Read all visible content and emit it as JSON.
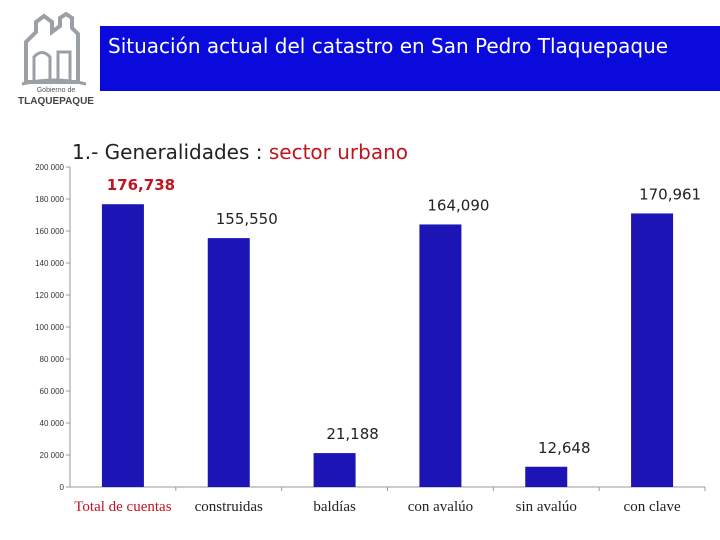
{
  "header": {
    "logo_line1": "Gobierno de",
    "logo_line2": "TLAQUEPAQUE",
    "title": "Situación actual del catastro en San Pedro Tlaquepaque"
  },
  "subtitle": {
    "prefix": "1.-  Generalidades : ",
    "highlight": "sector urbano"
  },
  "colors": {
    "banner": "#0a0adc",
    "bar": "#1c14b4",
    "highlight": "#c0141e",
    "axis": "#9a9a9a"
  },
  "chart_data": {
    "type": "bar",
    "categories": [
      "Total de cuentas",
      "construidas",
      "baldías",
      "con avalúo",
      "sin avalúo",
      "con clave"
    ],
    "values": [
      176738,
      155550,
      21188,
      164090,
      12648,
      170961
    ],
    "data_labels": [
      "176,738",
      "155,550",
      "21,188",
      "164,090",
      "12,648",
      "170,961"
    ],
    "ylim": [
      0,
      200000
    ],
    "yticks": [
      0,
      20000,
      40000,
      60000,
      80000,
      100000,
      120000,
      140000,
      160000,
      180000,
      200000
    ],
    "ytick_labels": [
      "0",
      "20 000",
      "40 000",
      "60 000",
      "80 000",
      "100 000",
      "120 000",
      "140 000",
      "160 000",
      "180 000",
      "200 000"
    ],
    "grid": false,
    "legend": "none"
  }
}
